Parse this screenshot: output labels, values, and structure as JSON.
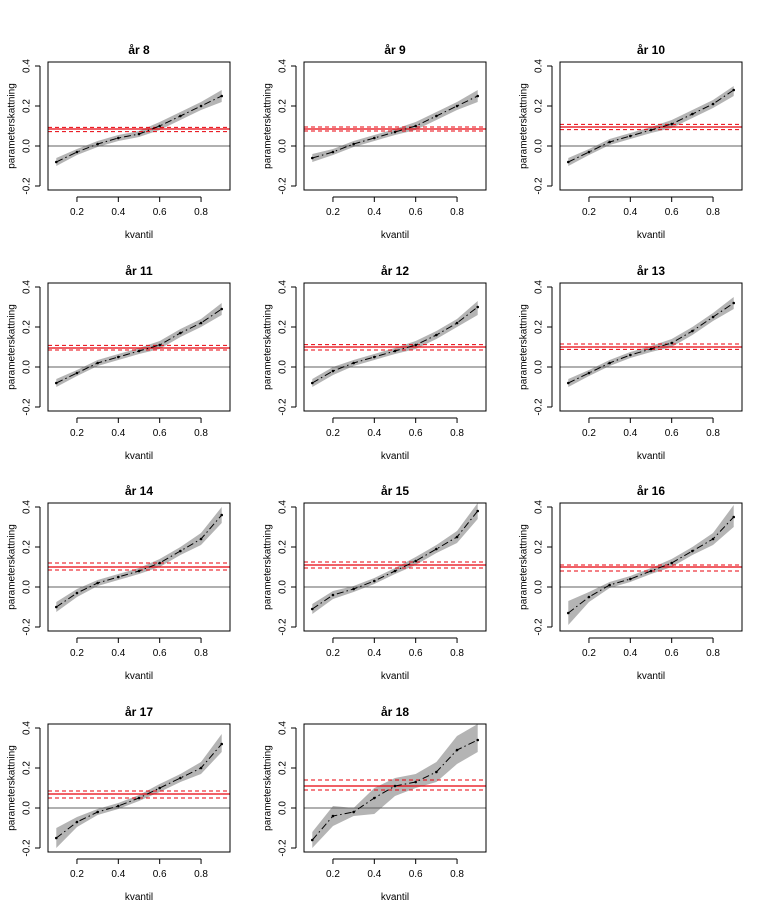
{
  "chart_data": {
    "type": "line",
    "xlabel": "kvantil",
    "ylabel": "parameterskattning",
    "xlim": [
      0.06,
      0.94
    ],
    "ylim": [
      -0.22,
      0.42
    ],
    "xticks": [
      0.2,
      0.4,
      0.6,
      0.8
    ],
    "xtick_labels": [
      "0.2",
      "0.4",
      "0.6",
      "0.8"
    ],
    "yticks": [
      -0.2,
      0.0,
      0.2,
      0.4
    ],
    "ytick_labels": [
      "-0.2",
      "0.0",
      "0.2",
      "0.4"
    ],
    "quantiles": [
      0.1,
      0.2,
      0.3,
      0.4,
      0.5,
      0.6,
      0.7,
      0.8,
      0.9
    ],
    "panels": [
      {
        "title": "år 8",
        "estimate": [
          -0.08,
          -0.03,
          0.01,
          0.04,
          0.06,
          0.1,
          0.15,
          0.2,
          0.25
        ],
        "lower": [
          -0.1,
          -0.045,
          -0.005,
          0.025,
          0.045,
          0.08,
          0.13,
          0.18,
          0.22
        ],
        "upper": [
          -0.06,
          -0.015,
          0.025,
          0.055,
          0.075,
          0.12,
          0.17,
          0.22,
          0.28
        ],
        "ols": 0.085,
        "ols_lower": 0.072,
        "ols_upper": 0.093
      },
      {
        "title": "år 9",
        "estimate": [
          -0.06,
          -0.03,
          0.01,
          0.04,
          0.07,
          0.1,
          0.15,
          0.2,
          0.25
        ],
        "lower": [
          -0.08,
          -0.045,
          -0.005,
          0.025,
          0.055,
          0.08,
          0.13,
          0.18,
          0.22
        ],
        "upper": [
          -0.04,
          -0.015,
          0.025,
          0.055,
          0.085,
          0.12,
          0.17,
          0.22,
          0.28
        ],
        "ols": 0.085,
        "ols_lower": 0.075,
        "ols_upper": 0.095
      },
      {
        "title": "år 10",
        "estimate": [
          -0.08,
          -0.03,
          0.02,
          0.05,
          0.08,
          0.11,
          0.16,
          0.21,
          0.28
        ],
        "lower": [
          -0.1,
          -0.045,
          0.005,
          0.035,
          0.065,
          0.09,
          0.14,
          0.19,
          0.25
        ],
        "upper": [
          -0.06,
          -0.015,
          0.035,
          0.065,
          0.095,
          0.13,
          0.18,
          0.23,
          0.3
        ],
        "ols": 0.095,
        "ols_lower": 0.082,
        "ols_upper": 0.108
      },
      {
        "title": "år 11",
        "estimate": [
          -0.08,
          -0.03,
          0.02,
          0.05,
          0.08,
          0.11,
          0.17,
          0.22,
          0.29
        ],
        "lower": [
          -0.1,
          -0.045,
          0.005,
          0.035,
          0.065,
          0.09,
          0.15,
          0.2,
          0.26
        ],
        "upper": [
          -0.06,
          -0.015,
          0.035,
          0.065,
          0.095,
          0.13,
          0.19,
          0.24,
          0.32
        ],
        "ols": 0.095,
        "ols_lower": 0.085,
        "ols_upper": 0.108
      },
      {
        "title": "år 12",
        "estimate": [
          -0.08,
          -0.02,
          0.02,
          0.05,
          0.08,
          0.11,
          0.16,
          0.22,
          0.3
        ],
        "lower": [
          -0.1,
          -0.04,
          0.005,
          0.035,
          0.065,
          0.09,
          0.14,
          0.2,
          0.26
        ],
        "upper": [
          -0.06,
          0.0,
          0.035,
          0.065,
          0.095,
          0.13,
          0.18,
          0.24,
          0.33
        ],
        "ols": 0.1,
        "ols_lower": 0.085,
        "ols_upper": 0.112
      },
      {
        "title": "år 13",
        "estimate": [
          -0.08,
          -0.03,
          0.02,
          0.06,
          0.09,
          0.12,
          0.18,
          0.25,
          0.32
        ],
        "lower": [
          -0.1,
          -0.045,
          0.005,
          0.045,
          0.075,
          0.1,
          0.16,
          0.23,
          0.29
        ],
        "upper": [
          -0.06,
          -0.015,
          0.035,
          0.075,
          0.105,
          0.14,
          0.2,
          0.27,
          0.35
        ],
        "ols": 0.1,
        "ols_lower": 0.088,
        "ols_upper": 0.115
      },
      {
        "title": "år 14",
        "estimate": [
          -0.1,
          -0.03,
          0.02,
          0.05,
          0.08,
          0.12,
          0.18,
          0.24,
          0.36
        ],
        "lower": [
          -0.125,
          -0.05,
          0.005,
          0.035,
          0.065,
          0.1,
          0.16,
          0.21,
          0.32
        ],
        "upper": [
          -0.075,
          -0.01,
          0.035,
          0.065,
          0.095,
          0.14,
          0.2,
          0.27,
          0.4
        ],
        "ols": 0.1,
        "ols_lower": 0.085,
        "ols_upper": 0.12
      },
      {
        "title": "år 15",
        "estimate": [
          -0.11,
          -0.04,
          -0.01,
          0.03,
          0.08,
          0.13,
          0.19,
          0.25,
          0.38
        ],
        "lower": [
          -0.135,
          -0.06,
          -0.025,
          0.015,
          0.065,
          0.11,
          0.17,
          0.22,
          0.34
        ],
        "upper": [
          -0.085,
          -0.02,
          0.005,
          0.045,
          0.095,
          0.15,
          0.21,
          0.28,
          0.42
        ],
        "ols": 0.11,
        "ols_lower": 0.095,
        "ols_upper": 0.125
      },
      {
        "title": "år 16",
        "estimate": [
          -0.13,
          -0.05,
          0.01,
          0.04,
          0.08,
          0.12,
          0.18,
          0.24,
          0.35
        ],
        "lower": [
          -0.19,
          -0.075,
          -0.005,
          0.025,
          0.065,
          0.1,
          0.16,
          0.21,
          0.3
        ],
        "upper": [
          -0.07,
          -0.025,
          0.025,
          0.055,
          0.095,
          0.14,
          0.2,
          0.27,
          0.41
        ],
        "ols": 0.1,
        "ols_lower": 0.08,
        "ols_upper": 0.11
      },
      {
        "title": "år 17",
        "estimate": [
          -0.15,
          -0.07,
          -0.02,
          0.01,
          0.05,
          0.1,
          0.15,
          0.2,
          0.32
        ],
        "lower": [
          -0.2,
          -0.095,
          -0.035,
          -0.005,
          0.035,
          0.08,
          0.13,
          0.17,
          0.28
        ],
        "upper": [
          -0.1,
          -0.045,
          -0.005,
          0.025,
          0.065,
          0.12,
          0.17,
          0.23,
          0.37
        ],
        "ols": 0.07,
        "ols_lower": 0.05,
        "ols_upper": 0.085
      },
      {
        "title": "år 18",
        "estimate": [
          -0.16,
          -0.04,
          -0.02,
          0.05,
          0.11,
          0.13,
          0.18,
          0.29,
          0.34
        ],
        "lower": [
          -0.2,
          -0.09,
          -0.04,
          -0.03,
          0.06,
          0.1,
          0.13,
          0.22,
          0.28
        ],
        "upper": [
          -0.12,
          0.01,
          0.0,
          0.1,
          0.15,
          0.17,
          0.23,
          0.36,
          0.42
        ],
        "ols": 0.11,
        "ols_lower": 0.09,
        "ols_upper": 0.14
      }
    ]
  }
}
